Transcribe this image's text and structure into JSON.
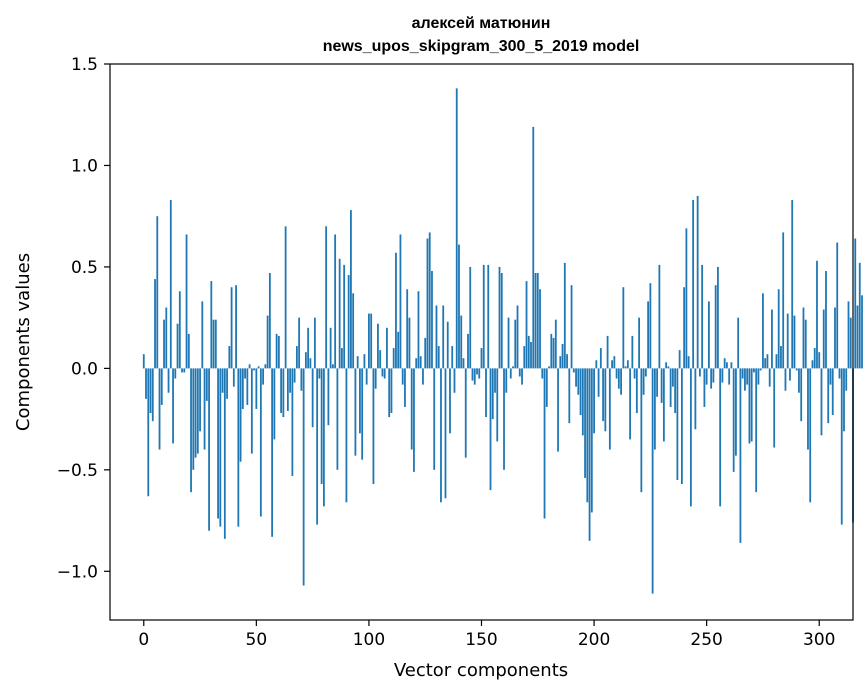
{
  "chart_data": {
    "type": "bar",
    "title_line1": "алексей матюнин",
    "title_line2": "news_upos_skipgram_300_5_2019 model",
    "xlabel": "Vector components",
    "ylabel": "Components values",
    "xlim": [
      -15,
      315
    ],
    "ylim": [
      -1.24,
      1.5
    ],
    "x_ticks": [
      0,
      50,
      100,
      150,
      200,
      250,
      300
    ],
    "x_tick_labels": [
      "0",
      "50",
      "100",
      "150",
      "200",
      "250",
      "300"
    ],
    "y_ticks": [
      -1.0,
      -0.5,
      0.0,
      0.5,
      1.0,
      1.5
    ],
    "y_tick_labels": [
      "−1.0",
      "−0.5",
      "0.0",
      "0.5",
      "1.0",
      "1.5"
    ],
    "bar_color": "#1f77b4",
    "grid": false,
    "legend": "none",
    "values": [
      0.07,
      -0.15,
      -0.63,
      -0.22,
      -0.26,
      0.44,
      0.75,
      -0.4,
      -0.18,
      0.24,
      0.3,
      -0.12,
      0.83,
      -0.37,
      -0.05,
      0.22,
      0.38,
      -0.02,
      -0.02,
      0.66,
      0.17,
      -0.61,
      -0.5,
      -0.44,
      -0.42,
      -0.31,
      0.33,
      -0.4,
      -0.16,
      -0.8,
      0.43,
      0.24,
      0.24,
      -0.74,
      -0.78,
      -0.12,
      -0.84,
      -0.15,
      0.11,
      0.4,
      -0.09,
      0.41,
      -0.78,
      -0.46,
      -0.2,
      -0.05,
      -0.18,
      0.02,
      -0.42,
      -0.01,
      -0.2,
      0.01,
      -0.73,
      -0.08,
      0.02,
      0.26,
      0.47,
      -0.83,
      -0.35,
      0.17,
      0.16,
      -0.22,
      -0.24,
      0.7,
      -0.21,
      -0.12,
      -0.53,
      -0.07,
      0.11,
      0.25,
      -0.11,
      -1.07,
      0.08,
      0.2,
      0.05,
      -0.29,
      0.25,
      -0.77,
      -0.05,
      -0.57,
      -0.68,
      0.7,
      -0.28,
      0.2,
      0.02,
      0.66,
      -0.5,
      0.54,
      0.1,
      0.51,
      -0.66,
      0.46,
      0.78,
      0.37,
      -0.43,
      0.06,
      -0.32,
      -0.45,
      0.07,
      -0.08,
      0.27,
      0.27,
      -0.57,
      -0.1,
      0.22,
      0.09,
      -0.04,
      -0.05,
      0.2,
      -0.24,
      -0.22,
      0.1,
      0.57,
      0.18,
      0.66,
      -0.08,
      -0.19,
      0.39,
      0.25,
      -0.4,
      -0.51,
      0.05,
      0.38,
      0.06,
      -0.08,
      0.15,
      0.64,
      0.67,
      0.48,
      -0.5,
      0.31,
      0.11,
      -0.66,
      0.31,
      -0.64,
      0.23,
      -0.32,
      0.11,
      -0.12,
      1.38,
      0.61,
      0.26,
      0.05,
      -0.44,
      0.17,
      0.5,
      -0.06,
      -0.08,
      -0.03,
      -0.05,
      0.1,
      0.51,
      -0.24,
      0.51,
      -0.6,
      -0.25,
      -0.12,
      -0.36,
      0.5,
      0.47,
      -0.5,
      -0.12,
      0.25,
      -0.05,
      0.01,
      0.24,
      0.31,
      -0.04,
      -0.08,
      0.11,
      0.43,
      0.16,
      0.13,
      1.19,
      0.47,
      0.47,
      0.39,
      -0.05,
      -0.74,
      -0.19,
      0.01,
      0.17,
      0.15,
      0.24,
      -0.41,
      0.06,
      0.12,
      0.52,
      0.07,
      -0.27,
      0.41,
      -0.02,
      -0.09,
      -0.13,
      -0.23,
      -0.33,
      -0.54,
      -0.66,
      -0.85,
      -0.71,
      -0.32,
      0.04,
      -0.14,
      0.1,
      -0.26,
      -0.31,
      0.16,
      -0.4,
      0.04,
      0.06,
      -0.05,
      -0.1,
      -0.13,
      0.4,
      0.01,
      0.04,
      -0.35,
      0.16,
      -0.05,
      -0.22,
      0.25,
      -0.61,
      -0.13,
      -0.04,
      0.33,
      0.42,
      -1.11,
      -0.4,
      -0.14,
      0.51,
      -0.17,
      -0.36,
      0.03,
      0.01,
      -0.19,
      -0.09,
      -0.22,
      -0.55,
      0.09,
      -0.57,
      0.4,
      0.69,
      0.06,
      -0.68,
      0.83,
      -0.3,
      0.85,
      -0.04,
      0.51,
      -0.19,
      -0.08,
      0.33,
      -0.1,
      -0.07,
      0.41,
      0.5,
      -0.68,
      -0.07,
      0.05,
      0.03,
      -0.08,
      0.03,
      -0.51,
      -0.43,
      0.25,
      -0.86,
      -0.05,
      -0.11,
      -0.08,
      -0.37,
      -0.36,
      -0.02,
      -0.61,
      -0.08,
      -0.01,
      0.37,
      0.05,
      0.07,
      -0.09,
      0.29,
      -0.39,
      0.07,
      0.39,
      0.11,
      0.67,
      -0.11,
      0.27,
      -0.06,
      0.83,
      0.26,
      -0.01,
      -0.12,
      -0.26,
      0.3,
      0.24,
      -0.4,
      -0.66,
      0.04,
      0.1,
      0.53,
      0.08,
      -0.33,
      0.29,
      0.48,
      -0.27,
      -0.08,
      -0.23,
      0.3,
      0.62,
      -0.05,
      -0.77,
      -0.31,
      -0.11,
      0.33,
      0.25,
      -0.76,
      0.64,
      0.31,
      0.52,
      0.36
    ]
  }
}
